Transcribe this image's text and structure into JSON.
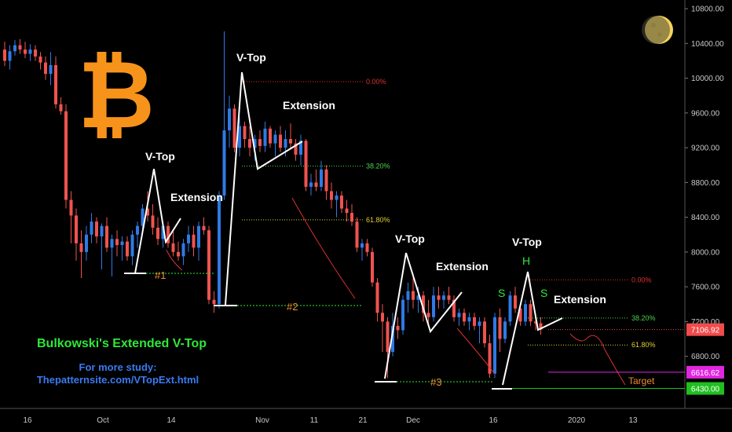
{
  "chart_data": {
    "type": "candlestick",
    "ylim": [
      6200,
      10900
    ],
    "y_ticks": [
      10800,
      10400,
      10000,
      9600,
      9200,
      8800,
      8400,
      8000,
      7600,
      7200,
      6800
    ],
    "y_tick_labels": [
      "10800.00",
      "10400.00",
      "10000.00",
      "9600.00",
      "9200.00",
      "8800.00",
      "8400.00",
      "8000.00",
      "7600.00",
      "7200.00",
      "6800.00"
    ],
    "x_tick_labels": [
      "16",
      "Oct",
      "14",
      "Nov",
      "11",
      "21",
      "Dec",
      "16",
      "2020",
      "13"
    ],
    "price_tags": [
      {
        "value": 7106.92,
        "label": "7106.92",
        "color": "#f24b4b"
      },
      {
        "value": 6616.62,
        "label": "6616.62",
        "color": "#e026e0"
      },
      {
        "value": 6430.0,
        "label": "6430.00",
        "color": "#1fbf1f"
      }
    ],
    "fib_levels": [
      {
        "group": 1,
        "label": "0.00%",
        "value": 9960,
        "color": "#e03030"
      },
      {
        "group": 1,
        "label": "38.20%",
        "value": 8990,
        "color": "#4cd44c"
      },
      {
        "group": 1,
        "label": "61.80%",
        "value": 8370,
        "color": "#e0d030"
      },
      {
        "group": 2,
        "label": "0.00%",
        "value": 7680,
        "color": "#e03030"
      },
      {
        "group": 2,
        "label": "38.20%",
        "value": 7240,
        "color": "#4cd44c"
      },
      {
        "group": 2,
        "label": "61.80%",
        "value": 6930,
        "color": "#e0d030"
      }
    ],
    "annotations": {
      "vtop": "V-Top",
      "extension": "Extension",
      "shoulder": "S",
      "head": "H",
      "target": "Target",
      "markers": [
        "#1",
        "#2",
        "#3"
      ]
    },
    "candles": [
      {
        "o": 10330,
        "h": 10420,
        "l": 10140,
        "c": 10200
      },
      {
        "o": 10200,
        "h": 10380,
        "l": 10100,
        "c": 10310
      },
      {
        "o": 10310,
        "h": 10440,
        "l": 10260,
        "c": 10380
      },
      {
        "o": 10380,
        "h": 10450,
        "l": 10280,
        "c": 10330
      },
      {
        "o": 10330,
        "h": 10420,
        "l": 10230,
        "c": 10280
      },
      {
        "o": 10280,
        "h": 10390,
        "l": 10200,
        "c": 10330
      },
      {
        "o": 10330,
        "h": 10380,
        "l": 10200,
        "c": 10250
      },
      {
        "o": 10250,
        "h": 10300,
        "l": 10100,
        "c": 10180
      },
      {
        "o": 10180,
        "h": 10250,
        "l": 9980,
        "c": 10050
      },
      {
        "o": 10050,
        "h": 10300,
        "l": 9920,
        "c": 10150
      },
      {
        "o": 10150,
        "h": 10250,
        "l": 9650,
        "c": 9700
      },
      {
        "o": 9700,
        "h": 9780,
        "l": 9580,
        "c": 9620
      },
      {
        "o": 9620,
        "h": 9700,
        "l": 8500,
        "c": 8600
      },
      {
        "o": 8600,
        "h": 8700,
        "l": 8100,
        "c": 8420
      },
      {
        "o": 8420,
        "h": 8500,
        "l": 7900,
        "c": 8100
      },
      {
        "o": 8100,
        "h": 8250,
        "l": 7700,
        "c": 8000
      },
      {
        "o": 8000,
        "h": 8300,
        "l": 7900,
        "c": 8200
      },
      {
        "o": 8200,
        "h": 8450,
        "l": 8100,
        "c": 8350
      },
      {
        "o": 8350,
        "h": 8400,
        "l": 8100,
        "c": 8180
      },
      {
        "o": 8180,
        "h": 8330,
        "l": 7800,
        "c": 8300
      },
      {
        "o": 8300,
        "h": 8400,
        "l": 8000,
        "c": 8050
      },
      {
        "o": 8050,
        "h": 8200,
        "l": 7720,
        "c": 8150
      },
      {
        "o": 8150,
        "h": 8250,
        "l": 7950,
        "c": 8080
      },
      {
        "o": 8080,
        "h": 8180,
        "l": 7900,
        "c": 8120
      },
      {
        "o": 8120,
        "h": 8180,
        "l": 7900,
        "c": 7950
      },
      {
        "o": 7950,
        "h": 8250,
        "l": 7850,
        "c": 8200
      },
      {
        "o": 8200,
        "h": 8350,
        "l": 8050,
        "c": 8300
      },
      {
        "o": 8300,
        "h": 8550,
        "l": 8200,
        "c": 8500
      },
      {
        "o": 8500,
        "h": 8700,
        "l": 8350,
        "c": 8420
      },
      {
        "o": 8420,
        "h": 8550,
        "l": 8200,
        "c": 8280
      },
      {
        "o": 8280,
        "h": 8400,
        "l": 8080,
        "c": 8150
      },
      {
        "o": 8150,
        "h": 8350,
        "l": 8050,
        "c": 8300
      },
      {
        "o": 8300,
        "h": 8350,
        "l": 8050,
        "c": 8100
      },
      {
        "o": 8100,
        "h": 8250,
        "l": 7950,
        "c": 8000
      },
      {
        "o": 8000,
        "h": 8120,
        "l": 7900,
        "c": 7950
      },
      {
        "o": 7950,
        "h": 8150,
        "l": 7850,
        "c": 8100
      },
      {
        "o": 8100,
        "h": 8300,
        "l": 8000,
        "c": 8200
      },
      {
        "o": 8200,
        "h": 8300,
        "l": 7950,
        "c": 8050
      },
      {
        "o": 8050,
        "h": 8350,
        "l": 7900,
        "c": 8300
      },
      {
        "o": 8300,
        "h": 8400,
        "l": 8200,
        "c": 8250
      },
      {
        "o": 8250,
        "h": 8300,
        "l": 7400,
        "c": 7450
      },
      {
        "o": 7450,
        "h": 7550,
        "l": 7300,
        "c": 7400
      },
      {
        "o": 7400,
        "h": 8700,
        "l": 7350,
        "c": 8650
      },
      {
        "o": 8650,
        "h": 10540,
        "l": 8600,
        "c": 9400
      },
      {
        "o": 9400,
        "h": 9800,
        "l": 9200,
        "c": 9650
      },
      {
        "o": 9650,
        "h": 9700,
        "l": 9150,
        "c": 9200
      },
      {
        "o": 9200,
        "h": 9550,
        "l": 9100,
        "c": 9450
      },
      {
        "o": 9450,
        "h": 9500,
        "l": 9200,
        "c": 9300
      },
      {
        "o": 9300,
        "h": 9450,
        "l": 9100,
        "c": 9200
      },
      {
        "o": 9200,
        "h": 9350,
        "l": 9050,
        "c": 9300
      },
      {
        "o": 9300,
        "h": 9400,
        "l": 9150,
        "c": 9220
      },
      {
        "o": 9220,
        "h": 9500,
        "l": 9150,
        "c": 9420
      },
      {
        "o": 9420,
        "h": 9450,
        "l": 9200,
        "c": 9250
      },
      {
        "o": 9250,
        "h": 9400,
        "l": 9100,
        "c": 9350
      },
      {
        "o": 9350,
        "h": 9450,
        "l": 9150,
        "c": 9200
      },
      {
        "o": 9200,
        "h": 9400,
        "l": 9100,
        "c": 9300
      },
      {
        "o": 9300,
        "h": 9480,
        "l": 9180,
        "c": 9250
      },
      {
        "o": 9250,
        "h": 9300,
        "l": 9050,
        "c": 9120
      },
      {
        "o": 9120,
        "h": 9350,
        "l": 9000,
        "c": 9280
      },
      {
        "o": 9280,
        "h": 9300,
        "l": 8700,
        "c": 8750
      },
      {
        "o": 8750,
        "h": 8900,
        "l": 8650,
        "c": 8800
      },
      {
        "o": 8800,
        "h": 8950,
        "l": 8700,
        "c": 8750
      },
      {
        "o": 8750,
        "h": 9050,
        "l": 8700,
        "c": 8950
      },
      {
        "o": 8950,
        "h": 9000,
        "l": 8600,
        "c": 8700
      },
      {
        "o": 8700,
        "h": 8800,
        "l": 8500,
        "c": 8600
      },
      {
        "o": 8600,
        "h": 8700,
        "l": 8400,
        "c": 8650
      },
      {
        "o": 8650,
        "h": 8700,
        "l": 8450,
        "c": 8500
      },
      {
        "o": 8500,
        "h": 8600,
        "l": 8350,
        "c": 8450
      },
      {
        "o": 8450,
        "h": 8550,
        "l": 8300,
        "c": 8350
      },
      {
        "o": 8350,
        "h": 8400,
        "l": 8000,
        "c": 8050
      },
      {
        "o": 8050,
        "h": 8150,
        "l": 7900,
        "c": 8100
      },
      {
        "o": 8100,
        "h": 8150,
        "l": 7950,
        "c": 8000
      },
      {
        "o": 8000,
        "h": 8050,
        "l": 7600,
        "c": 7650
      },
      {
        "o": 7650,
        "h": 7700,
        "l": 7200,
        "c": 7300
      },
      {
        "o": 7300,
        "h": 7400,
        "l": 6850,
        "c": 7200
      },
      {
        "o": 7200,
        "h": 7250,
        "l": 6550,
        "c": 6850
      },
      {
        "o": 6850,
        "h": 7300,
        "l": 6800,
        "c": 7150
      },
      {
        "o": 7150,
        "h": 7250,
        "l": 7000,
        "c": 7100
      },
      {
        "o": 7100,
        "h": 7500,
        "l": 7050,
        "c": 7450
      },
      {
        "o": 7450,
        "h": 7650,
        "l": 7300,
        "c": 7550
      },
      {
        "o": 7550,
        "h": 7700,
        "l": 7350,
        "c": 7450
      },
      {
        "o": 7450,
        "h": 7600,
        "l": 7300,
        "c": 7500
      },
      {
        "o": 7500,
        "h": 7550,
        "l": 7200,
        "c": 7300
      },
      {
        "o": 7300,
        "h": 7450,
        "l": 7150,
        "c": 7250
      },
      {
        "o": 7250,
        "h": 7600,
        "l": 7200,
        "c": 7500
      },
      {
        "o": 7500,
        "h": 7600,
        "l": 7350,
        "c": 7450
      },
      {
        "o": 7450,
        "h": 7550,
        "l": 7350,
        "c": 7500
      },
      {
        "o": 7500,
        "h": 7600,
        "l": 7400,
        "c": 7450
      },
      {
        "o": 7450,
        "h": 7500,
        "l": 7200,
        "c": 7250
      },
      {
        "o": 7250,
        "h": 7350,
        "l": 7150,
        "c": 7300
      },
      {
        "o": 7300,
        "h": 7350,
        "l": 7150,
        "c": 7200
      },
      {
        "o": 7200,
        "h": 7300,
        "l": 7100,
        "c": 7250
      },
      {
        "o": 7250,
        "h": 7300,
        "l": 7100,
        "c": 7150
      },
      {
        "o": 7150,
        "h": 7250,
        "l": 6950,
        "c": 7200
      },
      {
        "o": 7200,
        "h": 7250,
        "l": 6900,
        "c": 6950
      },
      {
        "o": 6950,
        "h": 7050,
        "l": 6550,
        "c": 6600
      },
      {
        "o": 6600,
        "h": 7300,
        "l": 6550,
        "c": 7250
      },
      {
        "o": 7250,
        "h": 7350,
        "l": 6850,
        "c": 7000
      },
      {
        "o": 7000,
        "h": 7250,
        "l": 6950,
        "c": 7200
      },
      {
        "o": 7200,
        "h": 7550,
        "l": 7150,
        "c": 7500
      },
      {
        "o": 7500,
        "h": 7600,
        "l": 7300,
        "c": 7350
      },
      {
        "o": 7350,
        "h": 7400,
        "l": 7150,
        "c": 7200
      },
      {
        "o": 7200,
        "h": 7450,
        "l": 7150,
        "c": 7400
      },
      {
        "o": 7400,
        "h": 7450,
        "l": 7150,
        "c": 7200
      },
      {
        "o": 7200,
        "h": 7280,
        "l": 7100,
        "c": 7180
      },
      {
        "o": 7180,
        "h": 7250,
        "l": 7050,
        "c": 7107
      }
    ]
  },
  "brand": {
    "bitcoin_color": "#f7931a",
    "bull_color": "#2f7ae5",
    "bear_color": "#f05350"
  },
  "texts": {
    "title": "Bulkowski's Extended V-Top",
    "study_line1": "For more study:",
    "study_line2": "Thepatternsite.com/VTopExt.html"
  }
}
